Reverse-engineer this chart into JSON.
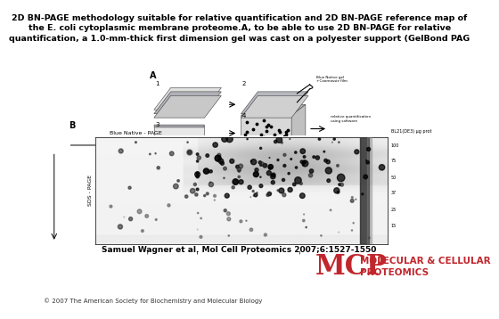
{
  "title_text": "2D BN-PAGE methodology suitable for relative quantification and 2D BN-PAGE reference map of\nthe E. coli cytoplasmic membrane proteome.A, to be able to use 2D BN-PAGE for relative\nquantification, a 1.0-mm-thick first dimension gel was cast on a polyester support (GelBond PAG",
  "title_fontsize": 6.8,
  "citation": "Samuel Wagner et al. Mol Cell Proteomics 2007;6:1527-1550",
  "citation_fontsize": 6.5,
  "copyright": "© 2007 The American Society for Biochemistry and Molecular Biology",
  "copyright_fontsize": 5.0,
  "mcp_text": "MCP",
  "mcp_color": "#c0272d",
  "mcp_fontsize": 22,
  "molecular_cellular": "MOLECULAR & CELLULAR",
  "proteomics": "PROTEOMICS",
  "logo_fontsize": 7.5,
  "bg_color": "#ffffff"
}
